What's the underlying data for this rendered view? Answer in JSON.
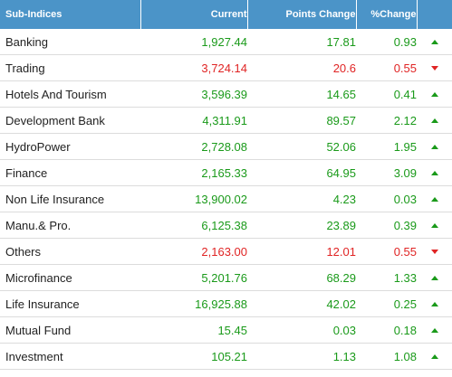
{
  "headers": {
    "name": "Sub-Indices",
    "current": "Current",
    "points_change": "Points Change",
    "pct_change": "%Change"
  },
  "colors": {
    "header_bg": "#4b94c8",
    "up": "#1a9a1a",
    "down": "#e02424"
  },
  "rows": [
    {
      "name": "Banking",
      "current": "1,927.44",
      "points": "17.81",
      "pct": "0.93",
      "dir": "up"
    },
    {
      "name": "Trading",
      "current": "3,724.14",
      "points": "20.6",
      "pct": "0.55",
      "dir": "down"
    },
    {
      "name": "Hotels And Tourism",
      "current": "3,596.39",
      "points": "14.65",
      "pct": "0.41",
      "dir": "up"
    },
    {
      "name": "Development Bank",
      "current": "4,311.91",
      "points": "89.57",
      "pct": "2.12",
      "dir": "up"
    },
    {
      "name": "HydroPower",
      "current": "2,728.08",
      "points": "52.06",
      "pct": "1.95",
      "dir": "up"
    },
    {
      "name": "Finance",
      "current": "2,165.33",
      "points": "64.95",
      "pct": "3.09",
      "dir": "up"
    },
    {
      "name": "Non Life Insurance",
      "current": "13,900.02",
      "points": "4.23",
      "pct": "0.03",
      "dir": "up"
    },
    {
      "name": "Manu.& Pro.",
      "current": "6,125.38",
      "points": "23.89",
      "pct": "0.39",
      "dir": "up"
    },
    {
      "name": "Others",
      "current": "2,163.00",
      "points": "12.01",
      "pct": "0.55",
      "dir": "down"
    },
    {
      "name": "Microfinance",
      "current": "5,201.76",
      "points": "68.29",
      "pct": "1.33",
      "dir": "up"
    },
    {
      "name": "Life Insurance",
      "current": "16,925.88",
      "points": "42.02",
      "pct": "0.25",
      "dir": "up"
    },
    {
      "name": "Mutual Fund",
      "current": "15.45",
      "points": "0.03",
      "pct": "0.18",
      "dir": "up"
    },
    {
      "name": "Investment",
      "current": "105.21",
      "points": "1.13",
      "pct": "1.08",
      "dir": "up"
    }
  ]
}
